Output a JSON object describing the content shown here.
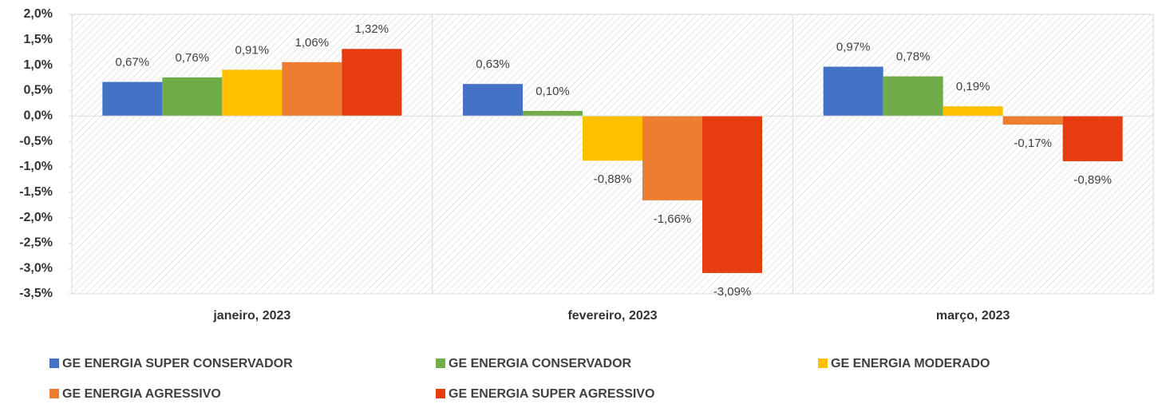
{
  "chart_data": {
    "type": "bar",
    "categories": [
      "janeiro, 2023",
      "fevereiro, 2023",
      "março, 2023"
    ],
    "series": [
      {
        "name": "GE ENERGIA SUPER CONSERVADOR",
        "color": "#4472c4",
        "values": [
          0.67,
          0.63,
          0.97
        ],
        "value_labels": [
          "0,67%",
          "0,63%",
          "0,97%"
        ]
      },
      {
        "name": "GE ENERGIA CONSERVADOR",
        "color": "#70ad47",
        "values": [
          0.76,
          0.1,
          0.78
        ],
        "value_labels": [
          "0,76%",
          "0,10%",
          "0,78%"
        ]
      },
      {
        "name": "GE ENERGIA MODERADO",
        "color": "#ffc000",
        "values": [
          0.91,
          -0.88,
          0.19
        ],
        "value_labels": [
          "0,91%",
          "-0,88%",
          "0,19%"
        ]
      },
      {
        "name": "GE ENERGIA AGRESSIVO",
        "color": "#ed7d31",
        "values": [
          1.06,
          -1.66,
          -0.17
        ],
        "value_labels": [
          "1,06%",
          "-1,66%",
          "-0,17%"
        ]
      },
      {
        "name": "GE ENERGIA SUPER AGRESSIVO",
        "color": "#e63c0f",
        "values": [
          1.32,
          -3.09,
          -0.89
        ],
        "value_labels": [
          "1,32%",
          "-3,09%",
          "-0,89%"
        ]
      }
    ],
    "ylim": [
      -3.5,
      2.0
    ],
    "yticks": [
      {
        "value": 2.0,
        "label": "2,0%"
      },
      {
        "value": 1.5,
        "label": "1,5%"
      },
      {
        "value": 1.0,
        "label": "1,0%"
      },
      {
        "value": 0.5,
        "label": "0,5%"
      },
      {
        "value": 0.0,
        "label": "0,0%"
      },
      {
        "value": -0.5,
        "label": "-0,5%"
      },
      {
        "value": -1.0,
        "label": "-1,0%"
      },
      {
        "value": -1.5,
        "label": "-1,5%"
      },
      {
        "value": -2.0,
        "label": "-2,0%"
      },
      {
        "value": -2.5,
        "label": "-2,5%"
      },
      {
        "value": -3.0,
        "label": "-3,0%"
      },
      {
        "value": -3.5,
        "label": "-3,5%"
      }
    ],
    "grid": false,
    "legend_position": "bottom"
  }
}
